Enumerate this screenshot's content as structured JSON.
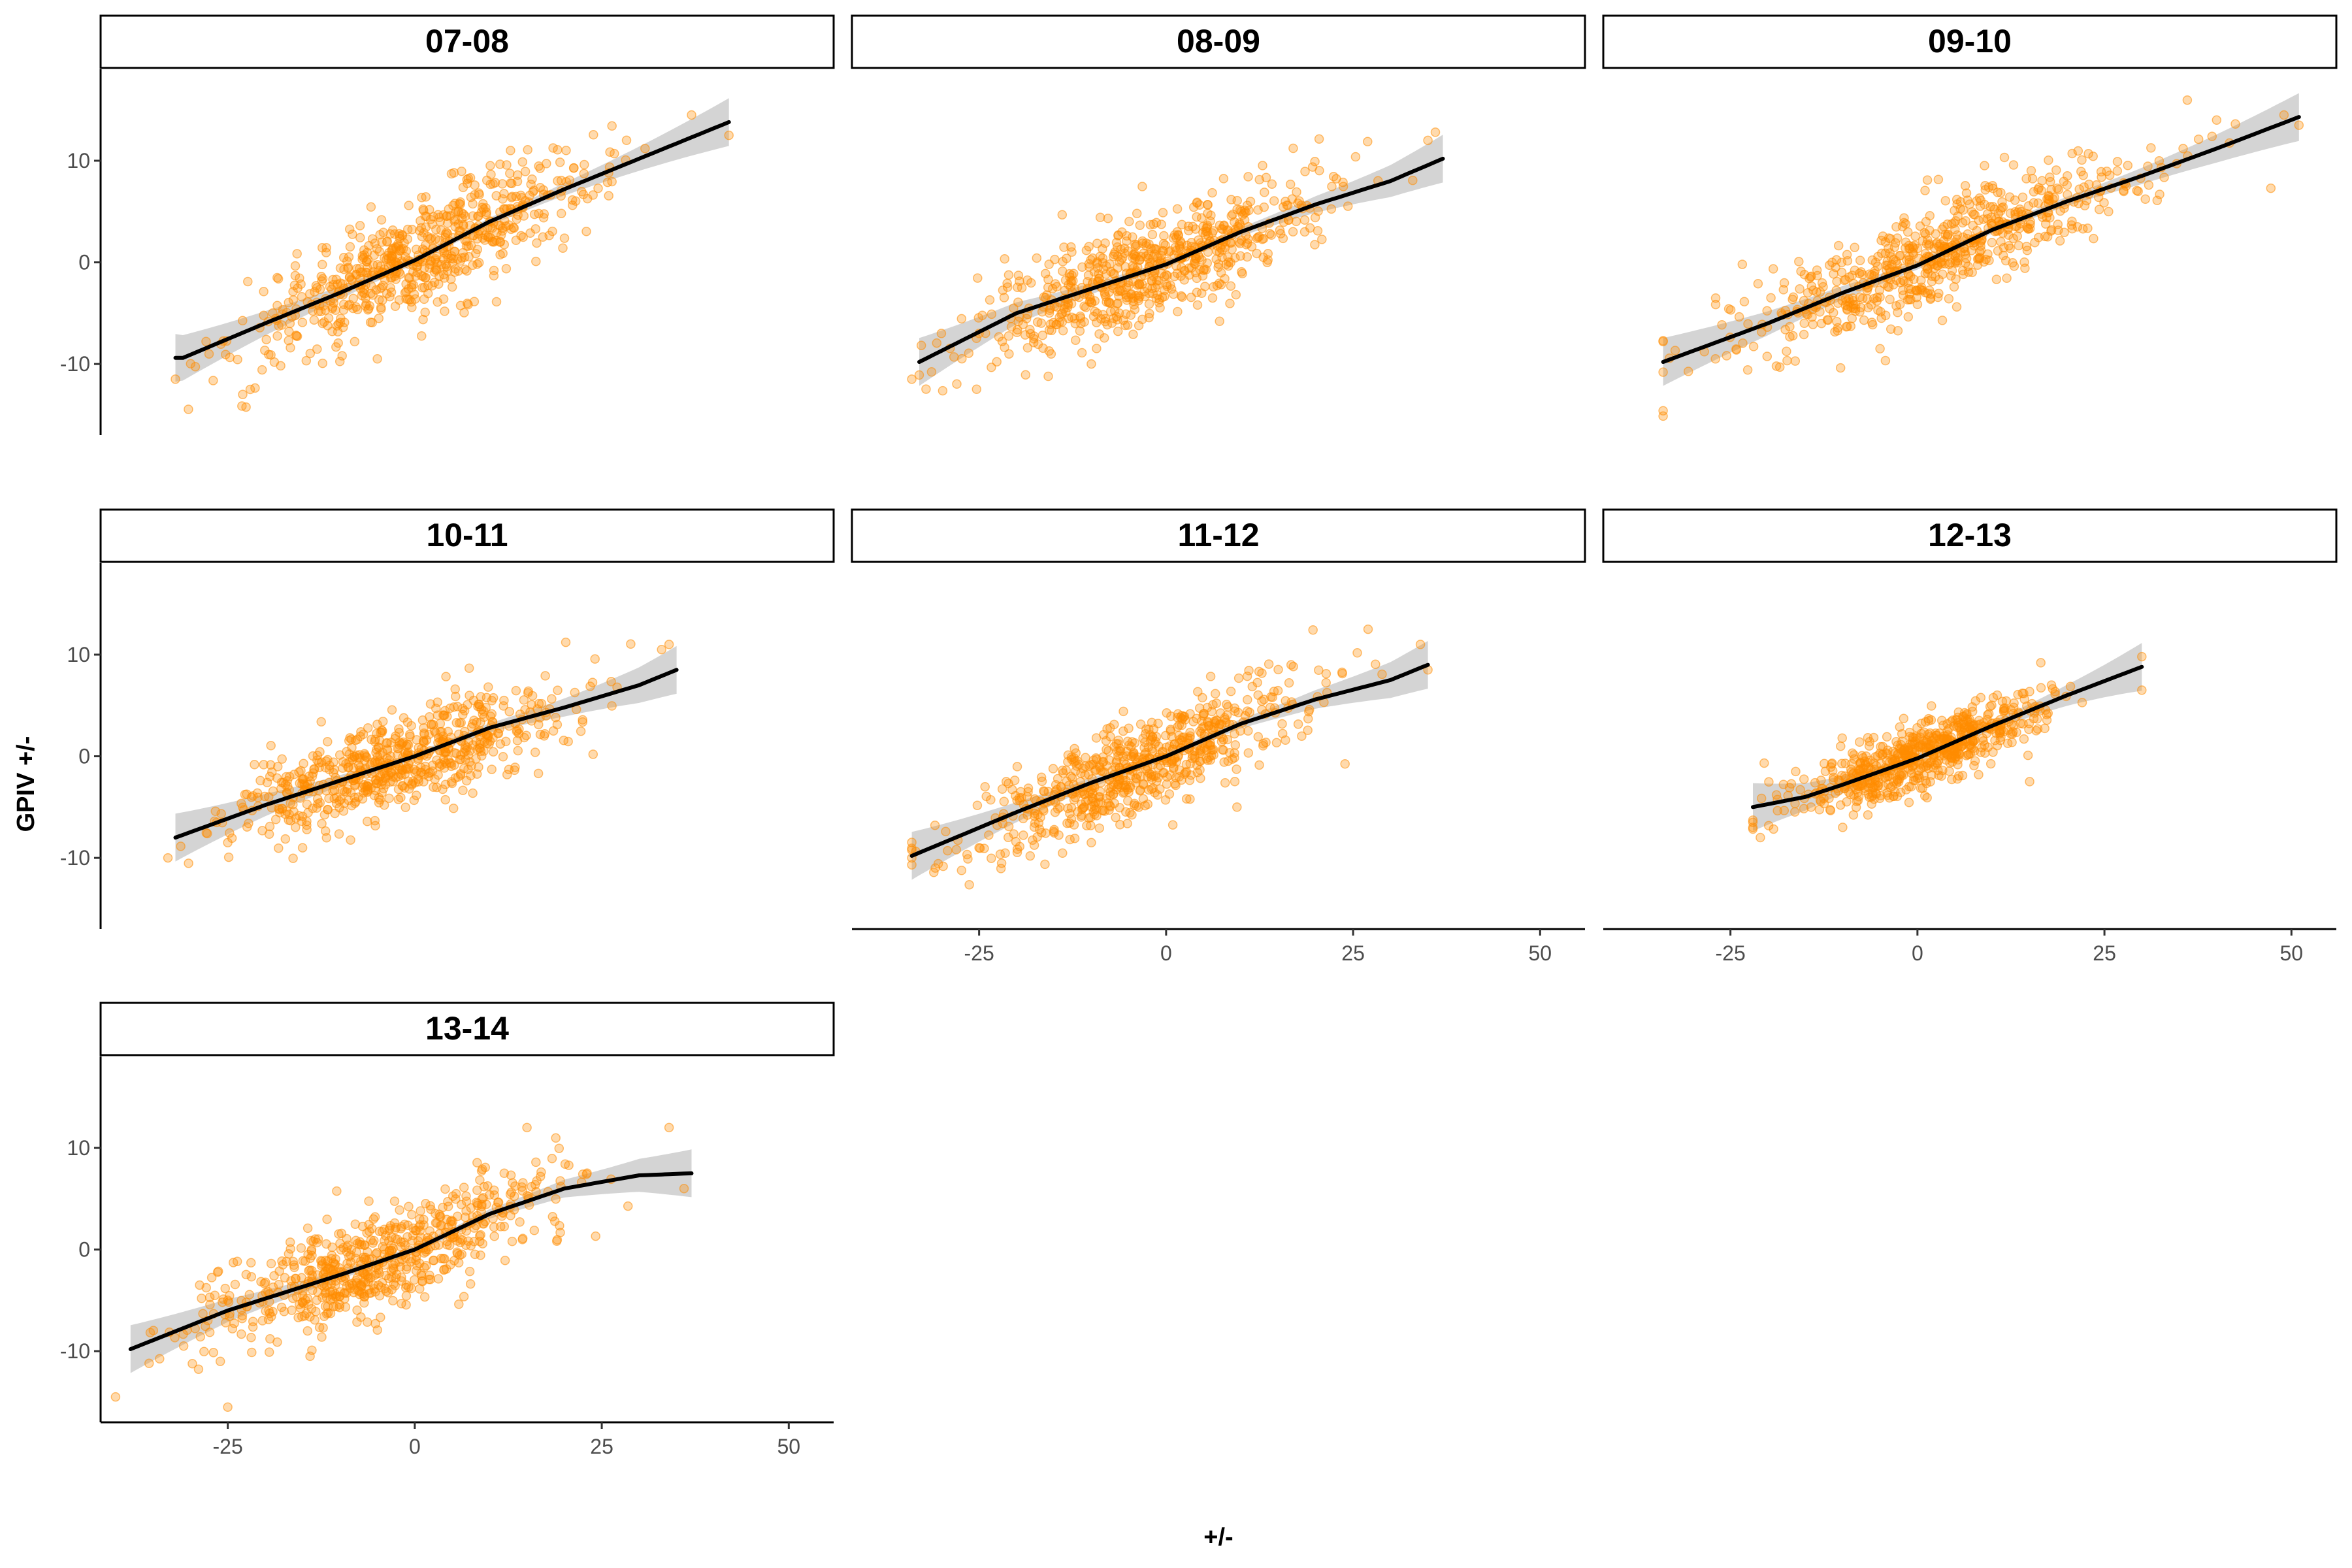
{
  "chart_data": {
    "type": "scatter",
    "layout": "facet-wrap",
    "xlabel": "+/-",
    "ylabel": "GPIV +/-",
    "x_ticks": [
      -25,
      0,
      25,
      50
    ],
    "y_ticks": [
      -10,
      0,
      10
    ],
    "xlim": [
      -42,
      56
    ],
    "ylim": [
      -17,
      19
    ],
    "point_color": "#ff8c00",
    "smooth_color": "#000000",
    "ribbon_color": "#bdbdbd",
    "panels": [
      {
        "label": "07-08",
        "x_range": [
          -32,
          42
        ],
        "spread": 2.6,
        "n_points": 650,
        "smooth": [
          [
            -31,
            -9.4
          ],
          [
            -20,
            -6.0
          ],
          [
            -10,
            -3.0
          ],
          [
            0,
            0.2
          ],
          [
            10,
            4.0
          ],
          [
            20,
            7.2
          ],
          [
            30,
            10.2
          ],
          [
            42,
            13.8
          ]
        ],
        "outliers": [
          [
            -32,
            -11.5
          ],
          [
            -23,
            -13.0
          ],
          [
            -22,
            -12.5
          ],
          [
            -5,
            -9.5
          ],
          [
            37,
            14.5
          ],
          [
            42,
            12.5
          ]
        ]
      },
      {
        "label": "08-09",
        "x_range": [
          -33,
          37
        ],
        "spread": 2.6,
        "n_points": 650,
        "smooth": [
          [
            -33,
            -9.8
          ],
          [
            -20,
            -5.0
          ],
          [
            -10,
            -2.6
          ],
          [
            0,
            -0.2
          ],
          [
            10,
            3.0
          ],
          [
            20,
            5.7
          ],
          [
            30,
            8.0
          ],
          [
            37,
            10.2
          ]
        ],
        "outliers": [
          [
            -34,
            -11.5
          ],
          [
            -25,
            -7.0
          ],
          [
            -10,
            -10.0
          ],
          [
            35,
            12.0
          ],
          [
            36,
            12.8
          ]
        ]
      },
      {
        "label": "09-10",
        "x_range": [
          -34,
          51
        ],
        "spread": 2.5,
        "n_points": 650,
        "smooth": [
          [
            -34,
            -9.8
          ],
          [
            -20,
            -6.0
          ],
          [
            -10,
            -3.0
          ],
          [
            0,
            -0.3
          ],
          [
            10,
            3.2
          ],
          [
            20,
            6.0
          ],
          [
            30,
            8.5
          ],
          [
            40,
            11.2
          ],
          [
            51,
            14.3
          ]
        ],
        "outliers": [
          [
            -34,
            -10.8
          ],
          [
            -27,
            -9.5
          ],
          [
            -5,
            -8.5
          ],
          [
            40,
            14.0
          ],
          [
            49,
            14.5
          ],
          [
            51,
            13.5
          ]
        ]
      },
      {
        "label": "10-11",
        "x_range": [
          -32,
          35
        ],
        "spread": 2.3,
        "n_points": 650,
        "smooth": [
          [
            -32,
            -8.0
          ],
          [
            -20,
            -4.8
          ],
          [
            -10,
            -2.4
          ],
          [
            0,
            0.0
          ],
          [
            10,
            2.8
          ],
          [
            20,
            4.8
          ],
          [
            30,
            7.0
          ],
          [
            35,
            8.5
          ]
        ],
        "outliers": [
          [
            -33,
            -10.0
          ],
          [
            -25,
            -8.5
          ],
          [
            -15,
            -9.0
          ],
          [
            34,
            11.0
          ],
          [
            33,
            10.5
          ]
        ]
      },
      {
        "label": "11-12",
        "x_range": [
          -34,
          35
        ],
        "spread": 2.4,
        "n_points": 650,
        "smooth": [
          [
            -34,
            -9.8
          ],
          [
            -20,
            -5.5
          ],
          [
            -10,
            -2.6
          ],
          [
            0,
            0.0
          ],
          [
            10,
            3.2
          ],
          [
            20,
            5.6
          ],
          [
            30,
            7.5
          ],
          [
            35,
            9.0
          ]
        ],
        "outliers": [
          [
            -34,
            -10.0
          ],
          [
            -25,
            -9.0
          ],
          [
            -10,
            -8.5
          ],
          [
            27,
            12.5
          ],
          [
            34,
            11.0
          ],
          [
            35,
            8.5
          ]
        ]
      },
      {
        "label": "12-13",
        "x_range": [
          -22,
          30
        ],
        "spread": 1.6,
        "n_points": 650,
        "smooth": [
          [
            -22,
            -5.0
          ],
          [
            -15,
            -4.0
          ],
          [
            -10,
            -2.8
          ],
          [
            0,
            -0.2
          ],
          [
            10,
            3.0
          ],
          [
            20,
            6.0
          ],
          [
            30,
            8.8
          ]
        ],
        "outliers": [
          [
            -22,
            -7.0
          ],
          [
            -21,
            -8.0
          ],
          [
            -10,
            -7.0
          ],
          [
            30,
            9.8
          ],
          [
            30,
            6.5
          ],
          [
            15,
            -2.5
          ]
        ]
      },
      {
        "label": "13-14",
        "x_range": [
          -38,
          37
        ],
        "spread": 2.4,
        "n_points": 650,
        "smooth": [
          [
            -38,
            -9.8
          ],
          [
            -25,
            -6.0
          ],
          [
            -10,
            -2.5
          ],
          [
            0,
            0.0
          ],
          [
            10,
            3.5
          ],
          [
            20,
            6.0
          ],
          [
            30,
            7.3
          ],
          [
            37,
            7.5
          ]
        ],
        "outliers": [
          [
            -40,
            -14.5
          ],
          [
            -25,
            -15.5
          ],
          [
            -26,
            -11.0
          ],
          [
            -14,
            -10.5
          ],
          [
            15,
            12.0
          ],
          [
            34,
            12.0
          ],
          [
            36,
            6.0
          ]
        ]
      }
    ]
  }
}
